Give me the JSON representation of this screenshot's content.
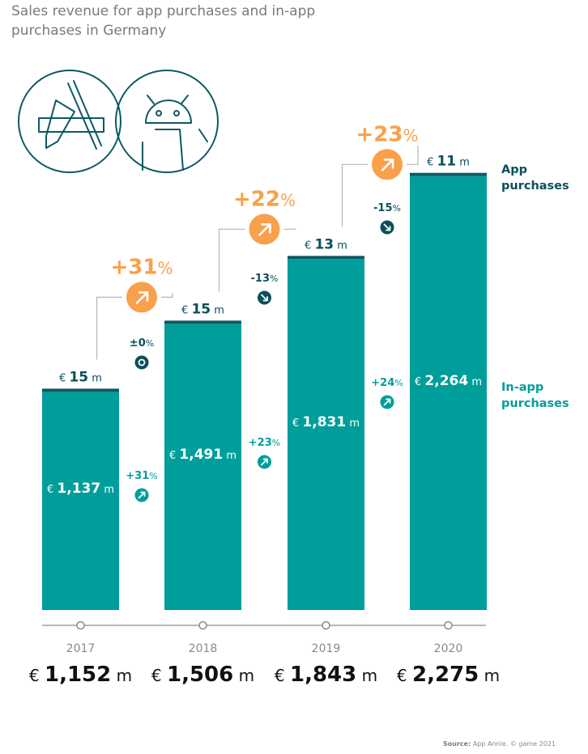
{
  "title": "Sales revenue for app purchases and in-app purchases in Germany",
  "source": {
    "label": "Source:",
    "text": "App Annie. © game 2021"
  },
  "icons": [
    "apple-app-store-icon",
    "android-robot-icon"
  ],
  "colors": {
    "in_app": "#009e9a",
    "app_cap": "#0c5a63",
    "orange": "#f9a04b",
    "dark_teal": "#0c4f5a",
    "grey": "#8a8a8a"
  },
  "series_labels": {
    "app": [
      "App",
      "purchases"
    ],
    "in_app": [
      "In-app",
      "purchases"
    ]
  },
  "chart_data": {
    "type": "bar",
    "stacked": true,
    "categories": [
      "2017",
      "2018",
      "2019",
      "2020"
    ],
    "unit": "m",
    "currency": "€",
    "series": [
      {
        "name": "In-app purchases",
        "values": [
          1137,
          1491,
          1831,
          2264
        ],
        "labels": [
          "1,137",
          "1,491",
          "1,831",
          "2,264"
        ]
      },
      {
        "name": "App purchases",
        "values": [
          15,
          15,
          13,
          11
        ],
        "labels": [
          "15",
          "15",
          "13",
          "11"
        ]
      }
    ],
    "totals": [
      1152,
      1506,
      1843,
      2275
    ],
    "total_labels": [
      "1,152",
      "1,506",
      "1,843",
      "2,275"
    ],
    "total_growth": [
      {
        "from": "2017",
        "to": "2018",
        "num": "+31",
        "unit": "%"
      },
      {
        "from": "2018",
        "to": "2019",
        "num": "+22",
        "unit": "%"
      },
      {
        "from": "2019",
        "to": "2020",
        "num": "+23",
        "unit": "%"
      }
    ],
    "app_growth": [
      {
        "num": "±0",
        "unit": "%",
        "direction": "flat"
      },
      {
        "num": "-13",
        "unit": "%",
        "direction": "down"
      },
      {
        "num": "-15",
        "unit": "%",
        "direction": "down"
      }
    ],
    "in_app_growth": [
      {
        "num": "+31",
        "unit": "%",
        "direction": "up"
      },
      {
        "num": "+23",
        "unit": "%",
        "direction": "up"
      },
      {
        "num": "+24",
        "unit": "%",
        "direction": "up"
      }
    ],
    "ylim": [
      0,
      2400
    ]
  }
}
